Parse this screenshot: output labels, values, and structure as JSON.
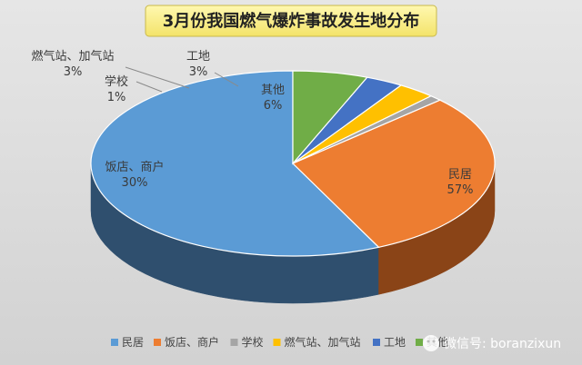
{
  "chart_data": {
    "type": "pie",
    "title": "3月份我国燃气爆炸事故发生地分布",
    "legend_position": "bottom",
    "slices": [
      {
        "name": "民居",
        "value": 57,
        "label": "57%",
        "color": "#5b9bd5",
        "side": "#2f4f6e"
      },
      {
        "name": "饭店、商户",
        "value": 30,
        "label": "30%",
        "color": "#ed7d31",
        "side": "#8a4417"
      },
      {
        "name": "学校",
        "value": 1,
        "label": "1%",
        "color": "#a5a5a5",
        "side": "#5e5e5e"
      },
      {
        "name": "燃气站、加气站",
        "value": 3,
        "label": "3%",
        "color": "#ffc000",
        "side": "#8e6b00"
      },
      {
        "name": "工地",
        "value": 3,
        "label": "3%",
        "color": "#4472c4",
        "side": "#233d6b"
      },
      {
        "name": "其他",
        "value": 6,
        "label": "6%",
        "color": "#70ad47",
        "side": "#3b5e25"
      }
    ]
  },
  "watermark": "微信号: boranzixun"
}
